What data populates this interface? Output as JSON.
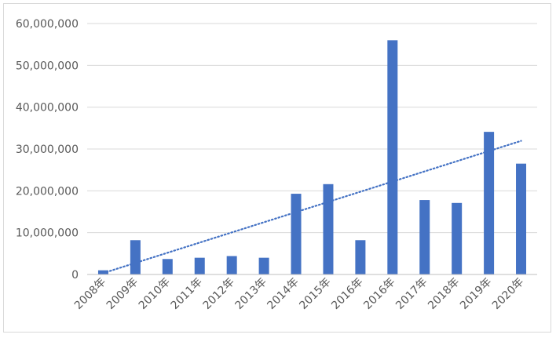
{
  "chart_data": {
    "type": "bar",
    "title": "",
    "xlabel": "",
    "ylabel": "",
    "categories": [
      "2008年",
      "2009年",
      "2010年",
      "2011年",
      "2012年",
      "2013年",
      "2014年",
      "2015年",
      "2016年",
      "2016年",
      "2017年",
      "2018年",
      "2019年",
      "2020年"
    ],
    "series": [
      {
        "values": [
          1000000,
          8200000,
          3700000,
          4000000,
          4400000,
          4000000,
          19300000,
          21600000,
          8200000,
          56000000,
          17800000,
          17100000,
          34100000,
          26500000
        ],
        "color": "#4472c4"
      }
    ],
    "trendline": {
      "type": "linear",
      "style": "dotted",
      "color": "#4472c4"
    },
    "ylim": [
      0,
      60000000
    ],
    "yticks": [
      0,
      10000000,
      20000000,
      30000000,
      40000000,
      50000000,
      60000000
    ],
    "ytick_labels": [
      "0",
      "10,000,000",
      "20,000,000",
      "30,000,000",
      "40,000,000",
      "50,000,000",
      "60,000,000"
    ],
    "grid": true,
    "legend": "none"
  }
}
